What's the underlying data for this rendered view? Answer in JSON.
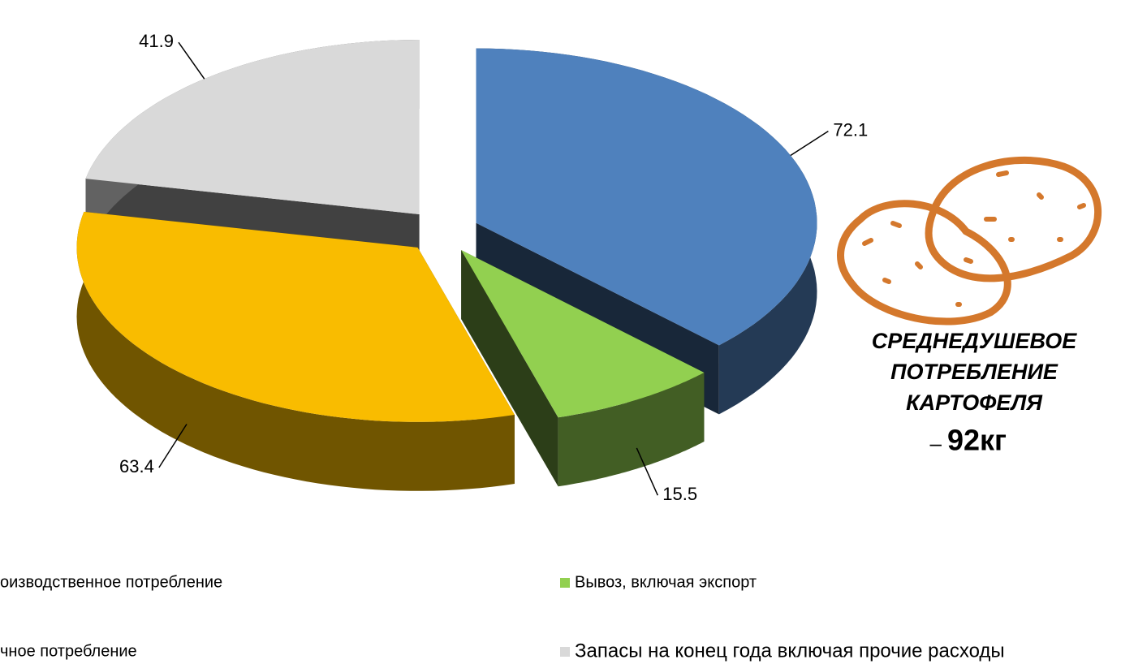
{
  "chart_data": {
    "type": "pie3d",
    "series": [
      {
        "name": "оизводственное потребление",
        "color": "#4f81bd",
        "values": [
          72.1
        ]
      },
      {
        "name": "Вывоз, включая экспорт",
        "color": "#92d050",
        "values": [
          15.5
        ]
      },
      {
        "name": "чное потребление",
        "color": "#f9bc00",
        "values": [
          63.4
        ]
      },
      {
        "name": "Запасы на конец года включая прочие расходы",
        "color": "#d9d9d9",
        "values": [
          41.9
        ]
      }
    ],
    "annotation": {
      "lines": [
        "СРЕДНЕДУШЕВОЕ",
        "ПОТРЕБЛЕНИЕ",
        "КАРТОФЕЛЯ"
      ],
      "dash": "–",
      "value": "92кг",
      "color": "#c0504d"
    }
  }
}
